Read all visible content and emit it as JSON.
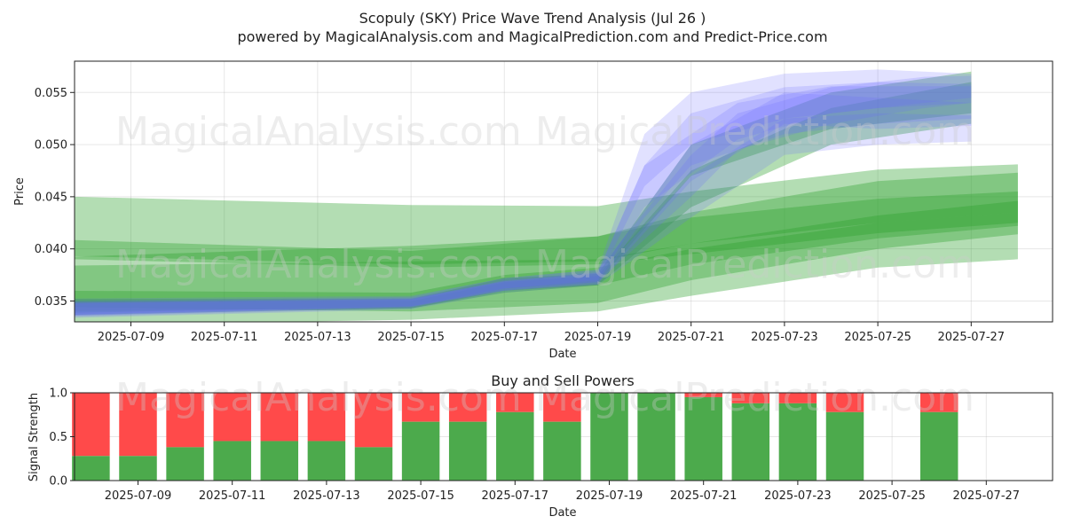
{
  "title_line1": "Scopuly (SKY) Price Wave Trend Analysis (Jul 26 )",
  "title_line2": "powered by MagicalAnalysis.com and MagicalPrediction.com and Predict-Price.com",
  "watermarks": [
    "MagicalAnalysis.com",
    "MagicalPrediction.com"
  ],
  "colors": {
    "green": "#2ca02c",
    "blue": "#6b6bff",
    "buy": "#4caa4c",
    "sell": "#ff4a4a"
  },
  "chart_data": [
    {
      "type": "area",
      "xlabel": "Date",
      "ylabel": "Price",
      "ylim": [
        0.033,
        0.058
      ],
      "y_ticks": [
        "0.035",
        "0.040",
        "0.045",
        "0.050",
        "0.055"
      ],
      "x_ticks": [
        "2025-07-09",
        "2025-07-11",
        "2025-07-13",
        "2025-07-15",
        "2025-07-17",
        "2025-07-19",
        "2025-07-21",
        "2025-07-23",
        "2025-07-25",
        "2025-07-27"
      ],
      "grid": true,
      "green_bands": [
        {
          "x": [
            "2025-07-06",
            "2025-07-15",
            "2025-07-19",
            "2025-07-21",
            "2025-07-25",
            "2025-07-28"
          ],
          "low": [
            0.0395,
            0.0385,
            0.0388,
            0.0405,
            0.0425,
            0.0435
          ],
          "high": [
            0.0452,
            0.0442,
            0.0441,
            0.0455,
            0.0476,
            0.0481
          ]
        },
        {
          "x": [
            "2025-07-06",
            "2025-07-15",
            "2025-07-19",
            "2025-07-21",
            "2025-07-25",
            "2025-07-28"
          ],
          "low": [
            0.0392,
            0.0382,
            0.0385,
            0.0395,
            0.0415,
            0.0425
          ],
          "high": [
            0.0411,
            0.0398,
            0.0412,
            0.0435,
            0.0465,
            0.0473
          ]
        },
        {
          "x": [
            "2025-07-06",
            "2025-07-15",
            "2025-07-19",
            "2025-07-21",
            "2025-07-25",
            "2025-07-28"
          ],
          "low": [
            0.0345,
            0.034,
            0.0348,
            0.037,
            0.04,
            0.0414
          ],
          "high": [
            0.0383,
            0.0388,
            0.039,
            0.0405,
            0.0432,
            0.0446
          ]
        },
        {
          "x": [
            "2025-07-06",
            "2025-07-15",
            "2025-07-19",
            "2025-07-21",
            "2025-07-25",
            "2025-07-28"
          ],
          "low": [
            0.0325,
            0.0332,
            0.034,
            0.0355,
            0.0382,
            0.039
          ],
          "high": [
            0.039,
            0.0403,
            0.0412,
            0.043,
            0.0448,
            0.0455
          ]
        },
        {
          "x": [
            "2025-07-07",
            "2025-07-15",
            "2025-07-17",
            "2025-07-19",
            "2025-07-21",
            "2025-07-25",
            "2025-07-28"
          ],
          "low": [
            0.034,
            0.0343,
            0.036,
            0.0365,
            0.0385,
            0.041,
            0.0422
          ],
          "high": [
            0.036,
            0.0358,
            0.0375,
            0.0382,
            0.04,
            0.0425,
            0.0435
          ]
        },
        {
          "x": [
            "2025-07-07",
            "2025-07-15",
            "2025-07-17",
            "2025-07-19",
            "2025-07-21",
            "2025-07-24",
            "2025-07-27"
          ],
          "low": [
            0.0338,
            0.0345,
            0.0362,
            0.0368,
            0.047,
            0.0515,
            0.053
          ],
          "high": [
            0.0352,
            0.0352,
            0.0372,
            0.0376,
            0.05,
            0.055,
            0.057
          ]
        },
        {
          "x": [
            "2025-07-07",
            "2025-07-15",
            "2025-07-17",
            "2025-07-19",
            "2025-07-21",
            "2025-07-24",
            "2025-07-27"
          ],
          "low": [
            0.0336,
            0.0343,
            0.0358,
            0.0365,
            0.044,
            0.05,
            0.052
          ],
          "high": [
            0.035,
            0.035,
            0.0368,
            0.0374,
            0.0475,
            0.0535,
            0.056
          ]
        }
      ],
      "blue_bands": [
        {
          "x": [
            "2025-07-07",
            "2025-07-15",
            "2025-07-17",
            "2025-07-19",
            "2025-07-20",
            "2025-07-21",
            "2025-07-23",
            "2025-07-25",
            "2025-07-27"
          ],
          "low": [
            0.0336,
            0.0345,
            0.0362,
            0.037,
            0.046,
            0.05,
            0.0525,
            0.0535,
            0.054
          ],
          "high": [
            0.0352,
            0.0355,
            0.0372,
            0.038,
            0.051,
            0.055,
            0.0568,
            0.0572,
            0.0568
          ]
        },
        {
          "x": [
            "2025-07-07",
            "2025-07-15",
            "2025-07-17",
            "2025-07-19",
            "2025-07-20",
            "2025-07-21",
            "2025-07-23",
            "2025-07-25",
            "2025-07-27"
          ],
          "low": [
            0.0334,
            0.0343,
            0.036,
            0.0366,
            0.043,
            0.048,
            0.051,
            0.052,
            0.0525
          ],
          "high": [
            0.0348,
            0.0352,
            0.037,
            0.0378,
            0.048,
            0.053,
            0.0555,
            0.056,
            0.0558
          ]
        },
        {
          "x": [
            "2025-07-07",
            "2025-07-15",
            "2025-07-17",
            "2025-07-19",
            "2025-07-21",
            "2025-07-22",
            "2025-07-24",
            "2025-07-26",
            "2025-07-27"
          ],
          "low": [
            0.0335,
            0.0344,
            0.0362,
            0.0368,
            0.045,
            0.0495,
            0.052,
            0.0535,
            0.054
          ],
          "high": [
            0.035,
            0.0354,
            0.0372,
            0.038,
            0.049,
            0.053,
            0.0555,
            0.0565,
            0.0566
          ]
        },
        {
          "x": [
            "2025-07-07",
            "2025-07-15",
            "2025-07-17",
            "2025-07-19",
            "2025-07-21",
            "2025-07-23",
            "2025-07-25",
            "2025-07-27"
          ],
          "low": [
            0.0333,
            0.0342,
            0.0358,
            0.0365,
            0.043,
            0.049,
            0.05,
            0.0503
          ],
          "high": [
            0.0347,
            0.0351,
            0.0368,
            0.0374,
            0.047,
            0.0525,
            0.053,
            0.0528
          ]
        },
        {
          "x": [
            "2025-07-07",
            "2025-07-15",
            "2025-07-17",
            "2025-07-19",
            "2025-07-20",
            "2025-07-22",
            "2025-07-24",
            "2025-07-27"
          ],
          "low": [
            0.0336,
            0.0345,
            0.036,
            0.0368,
            0.044,
            0.0505,
            0.053,
            0.0545
          ],
          "high": [
            0.0349,
            0.0353,
            0.0369,
            0.0377,
            0.048,
            0.054,
            0.0556,
            0.0556
          ]
        },
        {
          "x": [
            "2025-07-07",
            "2025-07-15",
            "2025-07-17",
            "2025-07-19",
            "2025-07-21",
            "2025-07-23",
            "2025-07-25",
            "2025-07-27"
          ],
          "low": [
            0.0335,
            0.0344,
            0.036,
            0.0366,
            0.0465,
            0.052,
            0.0515,
            0.0518
          ],
          "high": [
            0.0348,
            0.0352,
            0.0369,
            0.0376,
            0.05,
            0.055,
            0.0545,
            0.054
          ]
        }
      ]
    },
    {
      "type": "bar",
      "title": "Buy and Sell Powers",
      "xlabel": "Date",
      "ylabel": "Signal Strength",
      "ylim": [
        0,
        1
      ],
      "y_ticks": [
        "0.0",
        "0.5",
        "1.0"
      ],
      "x_ticks": [
        "2025-07-09",
        "2025-07-11",
        "2025-07-13",
        "2025-07-15",
        "2025-07-17",
        "2025-07-19",
        "2025-07-21",
        "2025-07-23",
        "2025-07-25",
        "2025-07-27"
      ],
      "categories": [
        "2025-07-08",
        "2025-07-09",
        "2025-07-10",
        "2025-07-11",
        "2025-07-12",
        "2025-07-13",
        "2025-07-14",
        "2025-07-15",
        "2025-07-16",
        "2025-07-17",
        "2025-07-18",
        "2025-07-19",
        "2025-07-20",
        "2025-07-21",
        "2025-07-22",
        "2025-07-23",
        "2025-07-24",
        "2025-07-26"
      ],
      "buy": [
        0.28,
        0.28,
        0.38,
        0.45,
        0.45,
        0.45,
        0.38,
        0.67,
        0.67,
        0.78,
        0.67,
        1.0,
        1.0,
        0.95,
        0.88,
        0.88,
        0.78,
        0.78
      ]
    }
  ]
}
